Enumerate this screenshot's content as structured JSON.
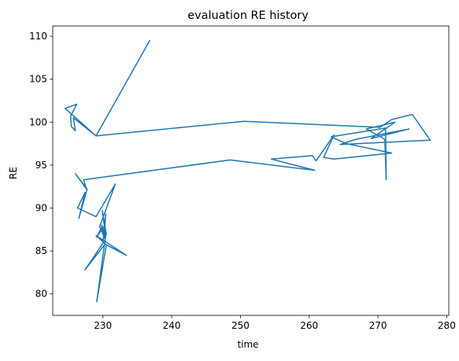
{
  "chart_data": {
    "type": "line",
    "title": "evaluation RE history",
    "xlabel": "time",
    "ylabel": "RE",
    "xlim": [
      222.7,
      280.3
    ],
    "ylim": [
      77.5,
      111.2
    ],
    "xticks": [
      230,
      240,
      250,
      260,
      270,
      280
    ],
    "yticks": [
      80,
      85,
      90,
      95,
      100,
      105,
      110
    ],
    "grid": false,
    "color": "#1f77b4",
    "series": [
      {
        "x": [
          236.8,
          229.0,
          224.5,
          226.2,
          225.3,
          225.4,
          226.0,
          225.7,
          229.0,
          250.5,
          270.3,
          272.0,
          275.0,
          277.6,
          264.5,
          266.8,
          274.5,
          269.0,
          272.5,
          268.3,
          271.0,
          271.2,
          271.1,
          263.2,
          265.4,
          272.0,
          263.6,
          262.1,
          263.6,
          261.0,
          260.5,
          254.5,
          260.8,
          248.5,
          227.2,
          227.6,
          226.0,
          227.7,
          226.5,
          227.4,
          226.3,
          229.0,
          231.8,
          229.5,
          230.4,
          229.8,
          230.2,
          230.5,
          229.9,
          230.4,
          229.1,
          230.5,
          229.0,
          233.4,
          230.3,
          227.4,
          230.0,
          230.4,
          230.2,
          229.8,
          230.1,
          229.1,
          229.9
        ],
        "y": [
          109.5,
          98.4,
          101.6,
          102.1,
          100.7,
          99.5,
          99.0,
          100.5,
          98.4,
          100.1,
          99.4,
          100.3,
          100.9,
          97.9,
          97.4,
          98.0,
          99.2,
          98.1,
          100.0,
          99.2,
          98.0,
          93.3,
          99.3,
          98.3,
          97.5,
          96.4,
          95.7,
          95.9,
          98.5,
          95.5,
          96.1,
          95.7,
          94.4,
          95.6,
          93.3,
          92.2,
          94.0,
          92.2,
          88.8,
          91.8,
          90.0,
          89.0,
          92.8,
          87.8,
          86.6,
          88.0,
          86.5,
          86.9,
          89.7,
          86.8,
          79.1,
          85.7,
          86.8,
          84.5,
          85.8,
          82.8,
          85.9,
          89.3,
          86.5,
          87.4,
          87.8,
          86.6,
          87.9
        ]
      }
    ]
  }
}
